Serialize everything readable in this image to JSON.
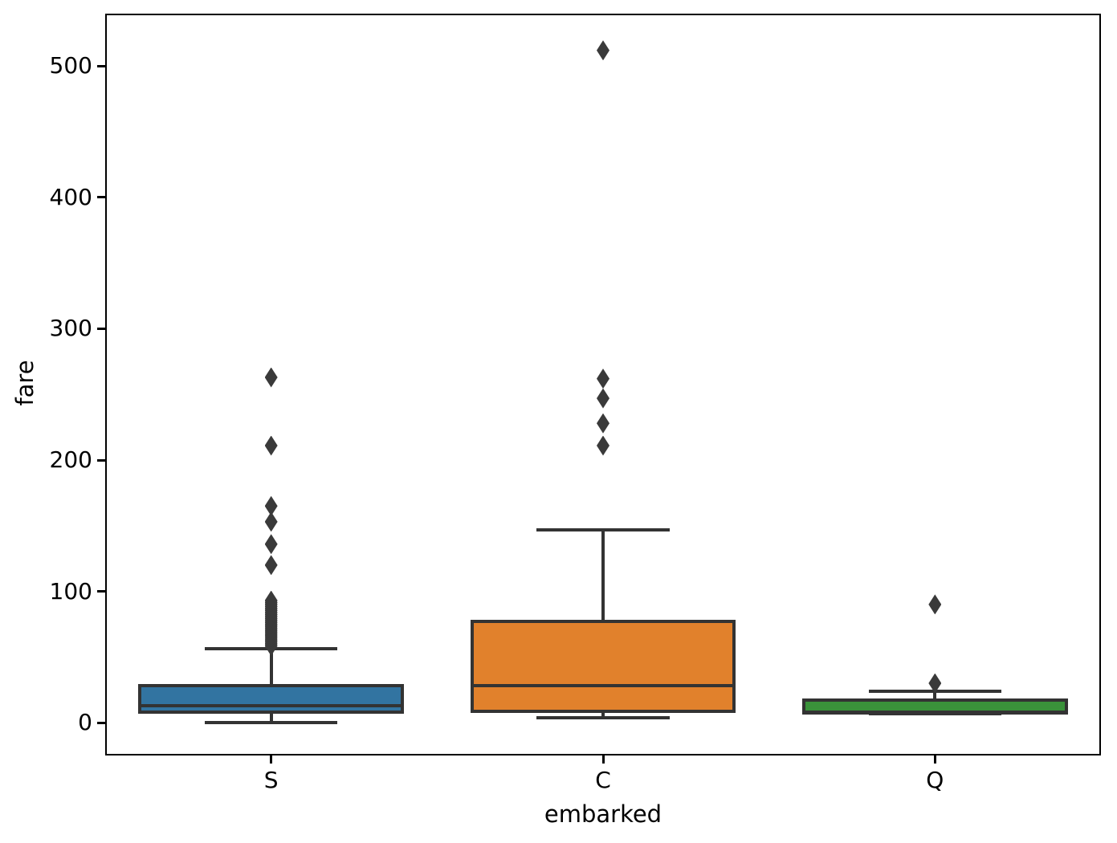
{
  "figure": {
    "background": "#ffffff",
    "frame_color": "#000000"
  },
  "chart_data": {
    "type": "boxplot",
    "title": "",
    "xlabel": "embarked",
    "ylabel": "fare",
    "categories": [
      "S",
      "C",
      "Q"
    ],
    "yticks": [
      0,
      100,
      200,
      300,
      400,
      500
    ],
    "ylim": [
      -25,
      540
    ],
    "grid": false,
    "legend": "none",
    "flier_marker": "diamond",
    "line_color": "#333333",
    "flier_color": "#3a3a3a",
    "series": [
      {
        "label": "S",
        "color": "#3274a1",
        "whisker_low": 0,
        "q1": 8,
        "median": 13,
        "q3": 28,
        "whisker_high": 56.5,
        "outliers": [
          58.5,
          60,
          61.5,
          63,
          64.5,
          66,
          67.5,
          69,
          70.5,
          72,
          73.5,
          75,
          76.5,
          78,
          79.5,
          81,
          82.5,
          84,
          85.5,
          87,
          88.5,
          90,
          91.5,
          93,
          120,
          136,
          153,
          165,
          211,
          263
        ]
      },
      {
        "label": "C",
        "color": "#e1812c",
        "whisker_low": 4,
        "q1": 8.5,
        "median": 28,
        "q3": 77,
        "whisker_high": 147,
        "outliers": [
          211,
          228,
          247,
          262,
          512
        ]
      },
      {
        "label": "Q",
        "color": "#3a923a",
        "whisker_low": 6.5,
        "q1": 7.3,
        "median": 7.75,
        "q3": 17,
        "whisker_high": 24,
        "outliers": [
          30,
          90
        ]
      }
    ]
  }
}
